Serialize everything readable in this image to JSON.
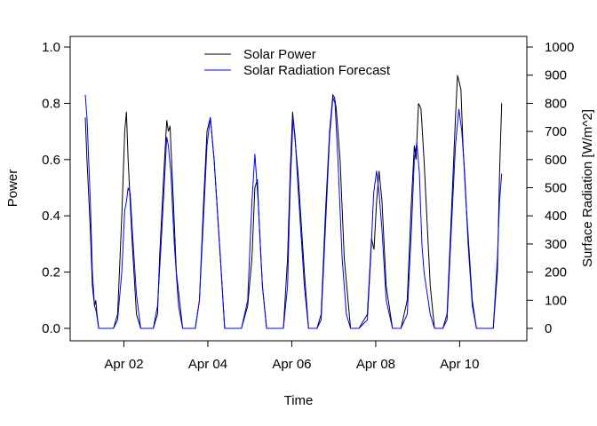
{
  "chart_data": {
    "type": "line",
    "title": "",
    "xlabel": "Time",
    "ylabel": "Power",
    "ylabel_right": "Surface Radiation [W/m^2]",
    "x_tick_labels": [
      "Apr 02",
      "Apr 04",
      "Apr 06",
      "Apr 08",
      "Apr 10"
    ],
    "x_tick_days": [
      2,
      4,
      6,
      8,
      10
    ],
    "xlim_days": [
      0.72,
      11.6
    ],
    "ylim": [
      0,
      1.0
    ],
    "y_ticks": [
      0.0,
      0.2,
      0.4,
      0.6,
      0.8,
      1.0
    ],
    "y_tick_labels": [
      "0.0",
      "0.2",
      "0.4",
      "0.6",
      "0.8",
      "1.0"
    ],
    "ylim_right": [
      0,
      1000
    ],
    "y_ticks_right": [
      0,
      100,
      200,
      300,
      400,
      500,
      600,
      700,
      800,
      900,
      1000
    ],
    "y_tick_labels_right": [
      "0",
      "100",
      "200",
      "300",
      "400",
      "500",
      "600",
      "700",
      "800",
      "900",
      "1000"
    ],
    "legend_position": "top-center",
    "grid": false,
    "series": [
      {
        "name": "Solar Power",
        "axis": "left",
        "color": "#000000",
        "x": [
          1.08,
          1.12,
          1.2,
          1.25,
          1.3,
          1.33,
          1.36,
          1.4,
          1.6,
          1.75,
          1.85,
          1.95,
          2.02,
          2.06,
          2.1,
          2.2,
          2.3,
          2.4,
          2.6,
          2.7,
          2.8,
          2.85,
          2.95,
          3.02,
          3.06,
          3.1,
          3.15,
          3.25,
          3.4,
          3.6,
          3.7,
          3.8,
          3.9,
          3.98,
          4.06,
          4.15,
          4.3,
          4.4,
          4.6,
          4.8,
          4.95,
          5.05,
          5.12,
          5.18,
          5.23,
          5.3,
          5.4,
          5.6,
          5.8,
          5.9,
          5.96,
          6.02,
          6.06,
          6.15,
          6.3,
          6.4,
          6.6,
          6.7,
          6.8,
          6.9,
          6.98,
          7.02,
          7.06,
          7.15,
          7.25,
          7.4,
          7.6,
          7.8,
          7.9,
          7.96,
          8.02,
          8.08,
          8.15,
          8.25,
          8.4,
          8.6,
          8.75,
          8.85,
          8.92,
          8.96,
          9.02,
          9.08,
          9.15,
          9.3,
          9.4,
          9.6,
          9.7,
          9.8,
          9.9,
          9.95,
          10.03,
          10.08,
          10.15,
          10.3,
          10.4,
          10.6,
          10.8,
          10.9,
          10.95,
          11.0
        ],
        "values": [
          0.75,
          0.6,
          0.35,
          0.15,
          0.08,
          0.1,
          0.05,
          0.0,
          0.0,
          0.0,
          0.05,
          0.4,
          0.7,
          0.77,
          0.6,
          0.3,
          0.05,
          0.0,
          0.0,
          0.0,
          0.05,
          0.25,
          0.55,
          0.74,
          0.7,
          0.72,
          0.55,
          0.2,
          0.0,
          0.0,
          0.0,
          0.1,
          0.45,
          0.7,
          0.75,
          0.6,
          0.25,
          0.0,
          0.0,
          0.0,
          0.08,
          0.25,
          0.5,
          0.53,
          0.35,
          0.15,
          0.0,
          0.0,
          0.0,
          0.25,
          0.55,
          0.77,
          0.7,
          0.55,
          0.2,
          0.0,
          0.0,
          0.05,
          0.4,
          0.7,
          0.83,
          0.82,
          0.78,
          0.6,
          0.25,
          0.0,
          0.0,
          0.05,
          0.32,
          0.28,
          0.45,
          0.56,
          0.45,
          0.15,
          0.0,
          0.0,
          0.1,
          0.45,
          0.65,
          0.6,
          0.8,
          0.78,
          0.6,
          0.15,
          0.0,
          0.0,
          0.05,
          0.4,
          0.75,
          0.9,
          0.85,
          0.65,
          0.45,
          0.1,
          0.0,
          0.0,
          0.0,
          0.2,
          0.55,
          0.8
        ]
      },
      {
        "name": "Solar Radiation Forecast",
        "axis": "right",
        "color": "#0000ff",
        "x": [
          1.08,
          1.12,
          1.2,
          1.25,
          1.3,
          1.34,
          1.4,
          1.6,
          1.75,
          1.85,
          1.95,
          2.02,
          2.06,
          2.1,
          2.15,
          2.2,
          2.3,
          2.4,
          2.6,
          2.7,
          2.8,
          2.88,
          2.95,
          3.02,
          3.06,
          3.12,
          3.2,
          3.3,
          3.4,
          3.6,
          3.7,
          3.8,
          3.9,
          3.98,
          4.06,
          4.15,
          4.3,
          4.4,
          4.6,
          4.8,
          4.95,
          5.05,
          5.12,
          5.2,
          5.3,
          5.4,
          5.6,
          5.8,
          5.9,
          5.96,
          6.03,
          6.08,
          6.15,
          6.3,
          6.4,
          6.6,
          6.7,
          6.8,
          6.9,
          6.98,
          7.03,
          7.1,
          7.2,
          7.3,
          7.4,
          7.6,
          7.8,
          7.88,
          7.95,
          8.02,
          8.08,
          8.15,
          8.25,
          8.4,
          8.6,
          8.75,
          8.85,
          8.92,
          8.98,
          9.04,
          9.1,
          9.15,
          9.3,
          9.4,
          9.6,
          9.7,
          9.8,
          9.9,
          9.98,
          10.05,
          10.12,
          10.2,
          10.3,
          10.4,
          10.6,
          10.8,
          10.9,
          10.95,
          11.0
        ],
        "values": [
          830,
          750,
          450,
          200,
          80,
          60,
          0,
          0,
          0,
          30,
          200,
          420,
          450,
          500,
          480,
          350,
          120,
          0,
          0,
          0,
          80,
          280,
          480,
          680,
          650,
          550,
          300,
          80,
          0,
          0,
          0,
          100,
          400,
          650,
          750,
          600,
          250,
          0,
          0,
          0,
          100,
          450,
          620,
          450,
          150,
          0,
          0,
          0,
          150,
          500,
          750,
          680,
          500,
          150,
          0,
          0,
          30,
          350,
          680,
          820,
          800,
          600,
          250,
          50,
          0,
          0,
          30,
          250,
          480,
          560,
          480,
          350,
          100,
          0,
          0,
          50,
          350,
          600,
          660,
          550,
          300,
          200,
          50,
          0,
          0,
          30,
          350,
          650,
          780,
          700,
          550,
          300,
          80,
          0,
          0,
          0,
          250,
          450,
          550
        ]
      }
    ]
  }
}
